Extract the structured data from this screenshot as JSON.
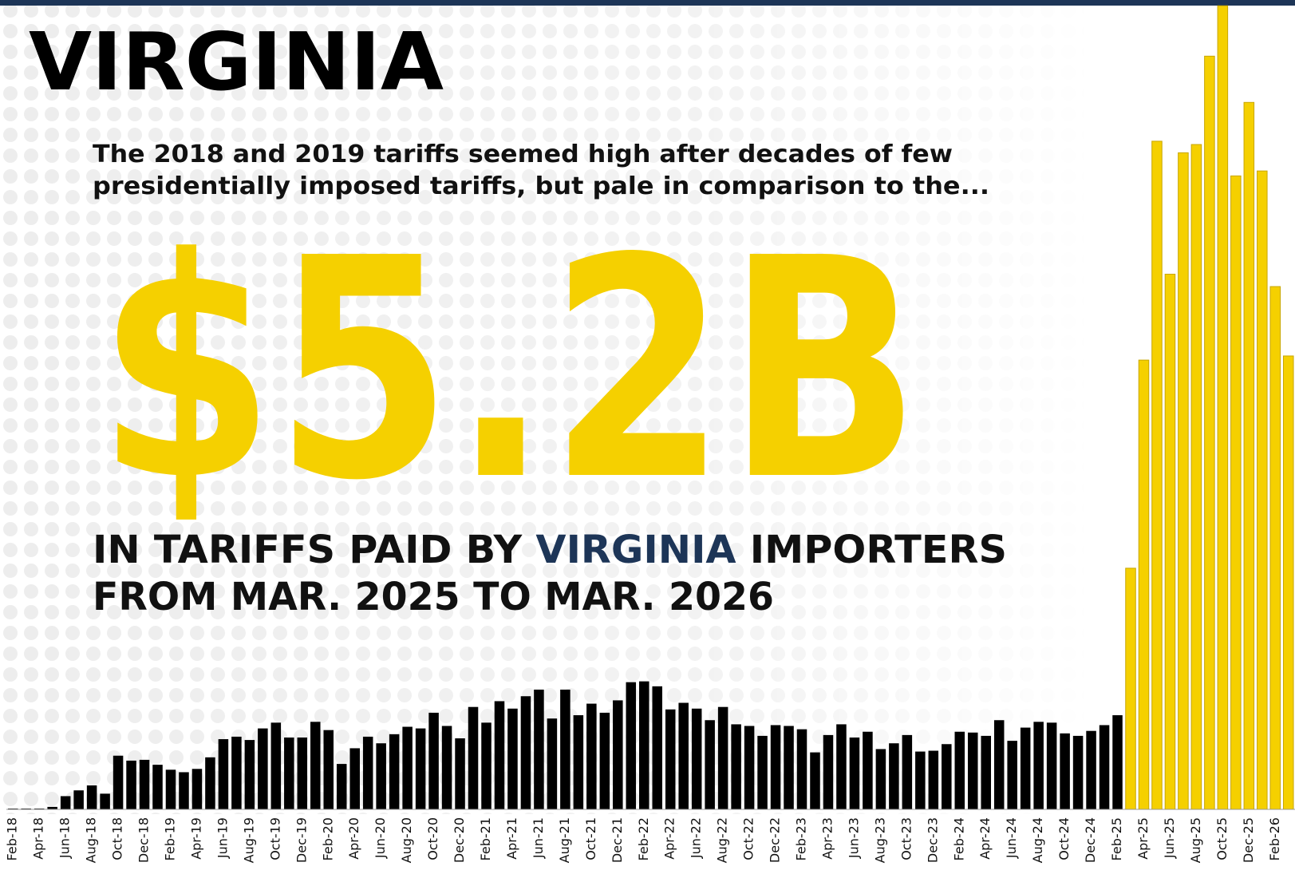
{
  "chart_data": {
    "type": "bar",
    "title": "VIRGINIA",
    "subtitle": [
      "The 2018 and 2019 tariffs seemed high after decades of few",
      "presidentially imposed tariffs, but pale in comparison to the..."
    ],
    "headline": "$5.2B",
    "tagline": {
      "line1_start": "IN TARIFFS PAID BY ",
      "line1_highlight": "VIRGINIA",
      "line1_end": " IMPORTERS",
      "line2": "FROM MAR. 2025 TO MAR. 2026"
    },
    "categories": [
      "Feb-18",
      null,
      "Apr-18",
      null,
      "Jun-18",
      null,
      "Aug-18",
      null,
      "Oct-18",
      null,
      "Dec-18",
      null,
      "Feb-19",
      null,
      "Apr-19",
      null,
      "Jun-19",
      null,
      "Aug-19",
      null,
      "Oct-19",
      null,
      "Dec-19",
      null,
      "Feb-20",
      null,
      "Apr-20",
      null,
      "Jun-20",
      null,
      "Aug-20",
      null,
      "Oct-20",
      null,
      "Dec-20",
      null,
      "Feb-21",
      null,
      "Apr-21",
      null,
      "Jun-21",
      null,
      "Aug-21",
      null,
      "Oct-21",
      null,
      "Dec-21",
      null,
      "Feb-22",
      null,
      "Apr-22",
      null,
      "Jun-22",
      null,
      "Aug-22",
      null,
      "Oct-22",
      null,
      "Dec-22",
      null,
      "Feb-23",
      null,
      "Apr-23",
      null,
      "Jun-23",
      null,
      "Aug-23",
      null,
      "Oct-23",
      null,
      "Dec-23",
      null,
      "Feb-24",
      null,
      "Apr-24",
      null,
      "Jun-24",
      null,
      "Aug-24",
      null,
      "Oct-24",
      null,
      "Dec-24",
      null,
      "Feb-25",
      null,
      "Apr-25",
      null,
      "Jun-25",
      null,
      "Aug-25",
      null,
      "Oct-25",
      null,
      "Dec-25",
      null,
      "Feb-26",
      null
    ],
    "values": [
      1,
      1,
      1,
      3,
      16,
      23,
      29,
      19,
      65,
      59,
      60,
      54,
      48,
      45,
      49,
      63,
      85,
      88,
      84,
      98,
      105,
      87,
      87,
      106,
      96,
      55,
      74,
      88,
      80,
      91,
      100,
      98,
      117,
      101,
      86,
      124,
      105,
      131,
      122,
      137,
      145,
      110,
      145,
      114,
      128,
      117,
      132,
      154,
      155,
      149,
      121,
      129,
      122,
      108,
      124,
      103,
      101,
      89,
      102,
      101,
      97,
      69,
      90,
      103,
      87,
      94,
      73,
      80,
      90,
      70,
      71,
      79,
      94,
      93,
      89,
      108,
      83,
      99,
      106,
      105,
      92,
      89,
      95,
      102,
      114,
      292,
      544,
      809,
      648,
      795,
      805,
      912,
      973,
      767,
      856,
      773,
      633,
      549
    ],
    "colors": [
      "#000000",
      "#000000",
      "#000000",
      "#000000",
      "#000000",
      "#000000",
      "#000000",
      "#000000",
      "#000000",
      "#000000",
      "#000000",
      "#000000",
      "#000000",
      "#000000",
      "#000000",
      "#000000",
      "#000000",
      "#000000",
      "#000000",
      "#000000",
      "#000000",
      "#000000",
      "#000000",
      "#000000",
      "#000000",
      "#000000",
      "#000000",
      "#000000",
      "#000000",
      "#000000",
      "#000000",
      "#000000",
      "#000000",
      "#000000",
      "#000000",
      "#000000",
      "#000000",
      "#000000",
      "#000000",
      "#000000",
      "#000000",
      "#000000",
      "#000000",
      "#000000",
      "#000000",
      "#000000",
      "#000000",
      "#000000",
      "#000000",
      "#000000",
      "#000000",
      "#000000",
      "#000000",
      "#000000",
      "#000000",
      "#000000",
      "#000000",
      "#000000",
      "#000000",
      "#000000",
      "#000000",
      "#000000",
      "#000000",
      "#000000",
      "#000000",
      "#000000",
      "#000000",
      "#000000",
      "#000000",
      "#000000",
      "#000000",
      "#000000",
      "#000000",
      "#000000",
      "#000000",
      "#000000",
      "#000000",
      "#000000",
      "#000000",
      "#000000",
      "#000000",
      "#000000",
      "#000000",
      "#000000",
      "#000000",
      "#f5d000",
      "#f5d000",
      "#f5d000",
      "#f5d000",
      "#f5d000",
      "#f5d000",
      "#f5d000",
      "#f5d000",
      "#f5d000",
      "#f5d000",
      "#f5d000",
      "#f5d000",
      "#f5d000"
    ],
    "ylim": [
      0,
      980
    ]
  }
}
